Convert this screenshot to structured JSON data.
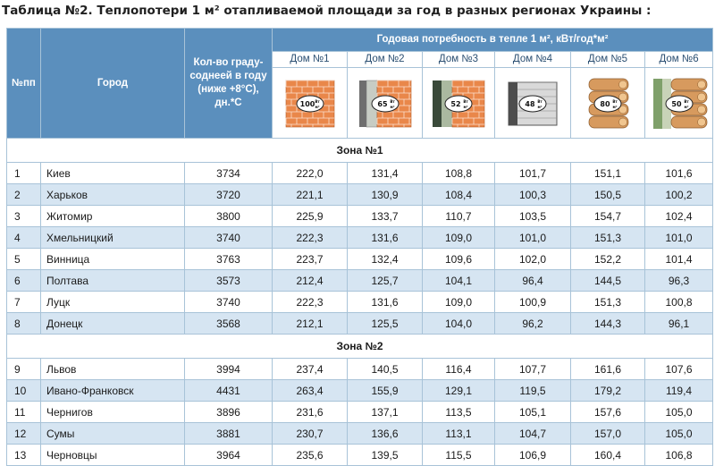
{
  "title": "Таблица №2. Теплопотери 1 м² отапливаемой площади за год в разных регионах Украины :",
  "header": {
    "num": "№пп",
    "city": "Город",
    "degree_days": "Кол-во граду-соднеей в году (ниже +8°С), дн.*С",
    "demand": "Годовая потребность в тепле 1 м², кВт/год*м²",
    "houses": [
      {
        "name": "Дом №1",
        "value": "100",
        "style": "brick-solid"
      },
      {
        "name": "Дом №2",
        "value": "65",
        "style": "brick-insulated"
      },
      {
        "name": "Дом №3",
        "value": "52",
        "style": "brick-foam"
      },
      {
        "name": "Дом №4",
        "value": "48",
        "style": "block-insulated"
      },
      {
        "name": "Дом №5",
        "value": "80",
        "style": "log"
      },
      {
        "name": "Дом №6",
        "value": "50",
        "style": "log-insulated"
      }
    ],
    "unit_top": "Вт",
    "unit_bottom": "м²"
  },
  "zones": [
    {
      "label": "Зона №1",
      "rows": [
        {
          "n": "1",
          "city": "Киев",
          "dd": "3734",
          "v": [
            "222,0",
            "131,4",
            "108,8",
            "101,7",
            "151,1",
            "101,6"
          ]
        },
        {
          "n": "2",
          "city": "Харьков",
          "dd": "3720",
          "v": [
            "221,1",
            "130,9",
            "108,4",
            "100,3",
            "150,5",
            "100,2"
          ]
        },
        {
          "n": "3",
          "city": "Житомир",
          "dd": "3800",
          "v": [
            "225,9",
            "133,7",
            "110,7",
            "103,5",
            "154,7",
            "102,4"
          ]
        },
        {
          "n": "4",
          "city": "Хмельницкий",
          "dd": "3740",
          "v": [
            "222,3",
            "131,6",
            "109,0",
            "101,0",
            "151,3",
            "101,0"
          ]
        },
        {
          "n": "5",
          "city": "Винница",
          "dd": "3763",
          "v": [
            "223,7",
            "132,4",
            "109,6",
            "102,0",
            "152,2",
            "101,4"
          ]
        },
        {
          "n": "6",
          "city": "Полтава",
          "dd": "3573",
          "v": [
            "212,4",
            "125,7",
            "104,1",
            "96,4",
            "144,5",
            "96,3"
          ]
        },
        {
          "n": "7",
          "city": "Луцк",
          "dd": "3740",
          "v": [
            "222,3",
            "131,6",
            "109,0",
            "100,9",
            "151,3",
            "100,8"
          ]
        },
        {
          "n": "8",
          "city": "Донецк",
          "dd": "3568",
          "v": [
            "212,1",
            "125,5",
            "104,0",
            "96,2",
            "144,3",
            "96,1"
          ]
        }
      ]
    },
    {
      "label": "Зона №2",
      "rows": [
        {
          "n": "9",
          "city": "Львов",
          "dd": "3994",
          "v": [
            "237,4",
            "140,5",
            "116,4",
            "107,7",
            "161,6",
            "107,6"
          ]
        },
        {
          "n": "10",
          "city": "Ивано-Франковск",
          "dd": "4431",
          "v": [
            "263,4",
            "155,9",
            "129,1",
            "119,5",
            "179,2",
            "119,4"
          ]
        },
        {
          "n": "11",
          "city": "Чернигов",
          "dd": "3896",
          "v": [
            "231,6",
            "137,1",
            "113,5",
            "105,1",
            "157,6",
            "105,0"
          ]
        },
        {
          "n": "12",
          "city": "Сумы",
          "dd": "3881",
          "v": [
            "230,7",
            "136,6",
            "113,1",
            "104,7",
            "157,0",
            "105,0"
          ]
        },
        {
          "n": "13",
          "city": "Черновцы",
          "dd": "3964",
          "v": [
            "235,6",
            "139,5",
            "115,5",
            "106,9",
            "160,4",
            "106,8"
          ]
        }
      ]
    }
  ],
  "colors": {
    "header_bg": "#5b8fbd",
    "alt_row": "#d6e5f2",
    "border": "#a8c3d8",
    "brick": "#e9874a",
    "log": "#d79a5e",
    "insulation": "#c7ccc4",
    "foam": "#aab9a0"
  }
}
